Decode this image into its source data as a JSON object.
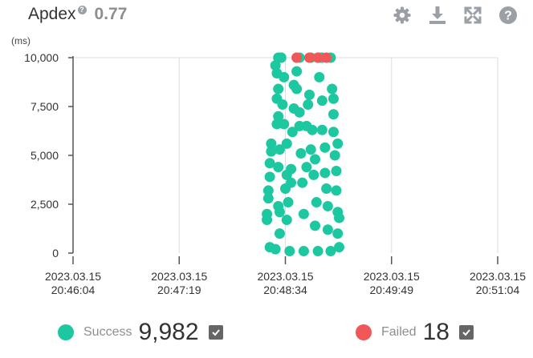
{
  "header": {
    "title": "Apdex",
    "help_glyph": "?",
    "score": "0.77"
  },
  "toolbar": {
    "icons": [
      "gear-icon",
      "download-icon",
      "fullscreen-icon",
      "help-icon"
    ],
    "color": "#9aa0a6"
  },
  "colors": {
    "success": "#1dc8a0",
    "failed": "#f25757",
    "axis": "#555555",
    "grid": "#dddddd"
  },
  "chart_data": {
    "type": "scatter",
    "unit_label": "(ms)",
    "ylim": [
      0,
      10000
    ],
    "y_ticks": [
      0,
      2500,
      5000,
      7500,
      10000
    ],
    "y_tick_labels": [
      "0",
      "2,500",
      "5,000",
      "7,500",
      "10,000"
    ],
    "x_tick_labels": [
      [
        "2023.03.15",
        "20:46:04"
      ],
      [
        "2023.03.15",
        "20:47:19"
      ],
      [
        "2023.03.15",
        "20:48:34"
      ],
      [
        "2023.03.15",
        "20:49:49"
      ],
      [
        "2023.03.15",
        "20:51:04"
      ]
    ],
    "grid": true,
    "series": [
      {
        "name": "Success",
        "x_range": [
          "20:48:21",
          "20:49:12"
        ],
        "points": [
          [
            "20:48:21",
            1700
          ],
          [
            "20:48:21",
            2000
          ],
          [
            "20:48:22",
            2800
          ],
          [
            "20:48:22",
            3200
          ],
          [
            "20:48:23",
            3900
          ],
          [
            "20:48:23",
            4600
          ],
          [
            "20:48:24",
            5200
          ],
          [
            "20:48:24",
            5600
          ],
          [
            "20:48:23",
            300
          ],
          [
            "20:48:27",
            200
          ],
          [
            "20:48:30",
            1000
          ],
          [
            "20:48:29",
            2400
          ],
          [
            "20:48:30",
            2100
          ],
          [
            "20:48:29",
            4400
          ],
          [
            "20:48:30",
            5300
          ],
          [
            "20:48:28",
            6600
          ],
          [
            "20:48:29",
            7000
          ],
          [
            "20:48:28",
            7900
          ],
          [
            "20:48:29",
            8400
          ],
          [
            "20:48:27",
            9600
          ],
          [
            "20:48:28",
            9200
          ],
          [
            "20:48:29",
            10000
          ],
          [
            "20:48:31",
            10000
          ],
          [
            "20:48:33",
            9000
          ],
          [
            "20:48:32",
            7600
          ],
          [
            "20:48:33",
            6600
          ],
          [
            "20:48:35",
            5600
          ],
          [
            "20:48:35",
            4000
          ],
          [
            "20:48:34",
            3300
          ],
          [
            "20:48:36",
            2600
          ],
          [
            "20:48:35",
            1700
          ],
          [
            "20:48:37",
            100
          ],
          [
            "20:48:38",
            3600
          ],
          [
            "20:48:38",
            4300
          ],
          [
            "20:48:39",
            6200
          ],
          [
            "20:48:40",
            7400
          ],
          [
            "20:48:40",
            8600
          ],
          [
            "20:48:42",
            9300
          ],
          [
            "20:48:42",
            8400
          ],
          [
            "20:48:44",
            7200
          ],
          [
            "20:48:44",
            6500
          ],
          [
            "20:48:45",
            5100
          ],
          [
            "20:48:46",
            3600
          ],
          [
            "20:48:47",
            2000
          ],
          [
            "20:48:49",
            4400
          ],
          [
            "20:48:47",
            100
          ],
          [
            "20:48:49",
            6500
          ],
          [
            "20:48:50",
            7600
          ],
          [
            "20:48:51",
            8100
          ],
          [
            "20:48:53",
            6300
          ],
          [
            "20:48:52",
            5300
          ],
          [
            "20:48:55",
            4800
          ],
          [
            "20:48:54",
            4000
          ],
          [
            "20:48:56",
            2600
          ],
          [
            "20:48:55",
            1400
          ],
          [
            "20:48:57",
            100
          ],
          [
            "20:48:58",
            10000
          ],
          [
            "20:48:58",
            9000
          ],
          [
            "20:49:00",
            7800
          ],
          [
            "20:49:00",
            6300
          ],
          [
            "20:49:02",
            5400
          ],
          [
            "20:49:02",
            4100
          ],
          [
            "20:49:03",
            3300
          ],
          [
            "20:49:04",
            2400
          ],
          [
            "20:49:04",
            1200
          ],
          [
            "20:49:06",
            100
          ],
          [
            "20:49:06",
            10000
          ],
          [
            "20:49:07",
            8400
          ],
          [
            "20:49:08",
            7100
          ],
          [
            "20:49:08",
            6200
          ],
          [
            "20:49:09",
            5000
          ],
          [
            "20:49:10",
            4200
          ],
          [
            "20:49:10",
            3200
          ],
          [
            "20:49:11",
            2100
          ],
          [
            "20:49:11",
            1000
          ],
          [
            "20:49:12",
            300
          ],
          [
            "20:49:12",
            1800
          ],
          [
            "20:48:31",
            10000
          ],
          [
            "20:48:44",
            10000
          ],
          [
            "20:48:52",
            10000
          ],
          [
            "20:49:00",
            10000
          ],
          [
            "20:49:08",
            7900
          ],
          [
            "20:49:11",
            5600
          ]
        ],
        "count": "9,982"
      },
      {
        "name": "Failed",
        "points": [
          [
            "20:48:42",
            10000
          ],
          [
            "20:48:51",
            10000
          ],
          [
            "20:48:57",
            10000
          ],
          [
            "20:49:03",
            10000
          ]
        ],
        "count": "18"
      }
    ]
  },
  "legend": {
    "items": [
      {
        "label": "Success",
        "count": "9,982",
        "checked": true
      },
      {
        "label": "Failed",
        "count": "18",
        "checked": true
      }
    ]
  }
}
